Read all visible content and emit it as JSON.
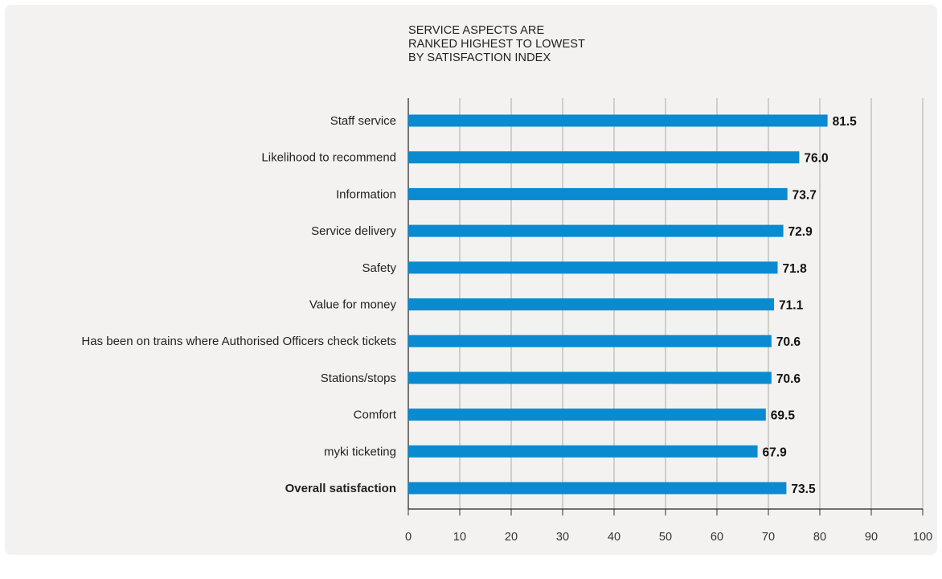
{
  "chart_data": {
    "type": "bar",
    "orientation": "horizontal",
    "title": [
      "SERVICE ASPECTS ARE",
      "RANKED HIGHEST TO LOWEST",
      "BY SATISFACTION INDEX"
    ],
    "categories": [
      "Staff service",
      "Likelihood to recommend",
      "Information",
      "Service delivery",
      "Safety",
      "Value for money",
      "Has been on trains where Authorised Officers check tickets",
      "Stations/stops",
      "Comfort",
      "myki ticketing",
      "Overall satisfaction"
    ],
    "values": [
      81.5,
      76.0,
      73.7,
      72.9,
      71.8,
      71.1,
      70.6,
      70.6,
      69.5,
      67.9,
      73.5
    ],
    "value_labels": [
      "81.5",
      "76.0",
      "73.7",
      "72.9",
      "71.8",
      "71.1",
      "70.6",
      "70.6",
      "69.5",
      "67.9",
      "73.5"
    ],
    "emphasized_category": "Overall satisfaction",
    "xlim": [
      0,
      100
    ],
    "xticks": [
      "0",
      "10",
      "20",
      "30",
      "40",
      "50",
      "60",
      "70",
      "80",
      "90",
      "100"
    ],
    "grid": "vertical",
    "bar_color": "#0a8ad0",
    "grid_color": "#aaaaaa"
  }
}
